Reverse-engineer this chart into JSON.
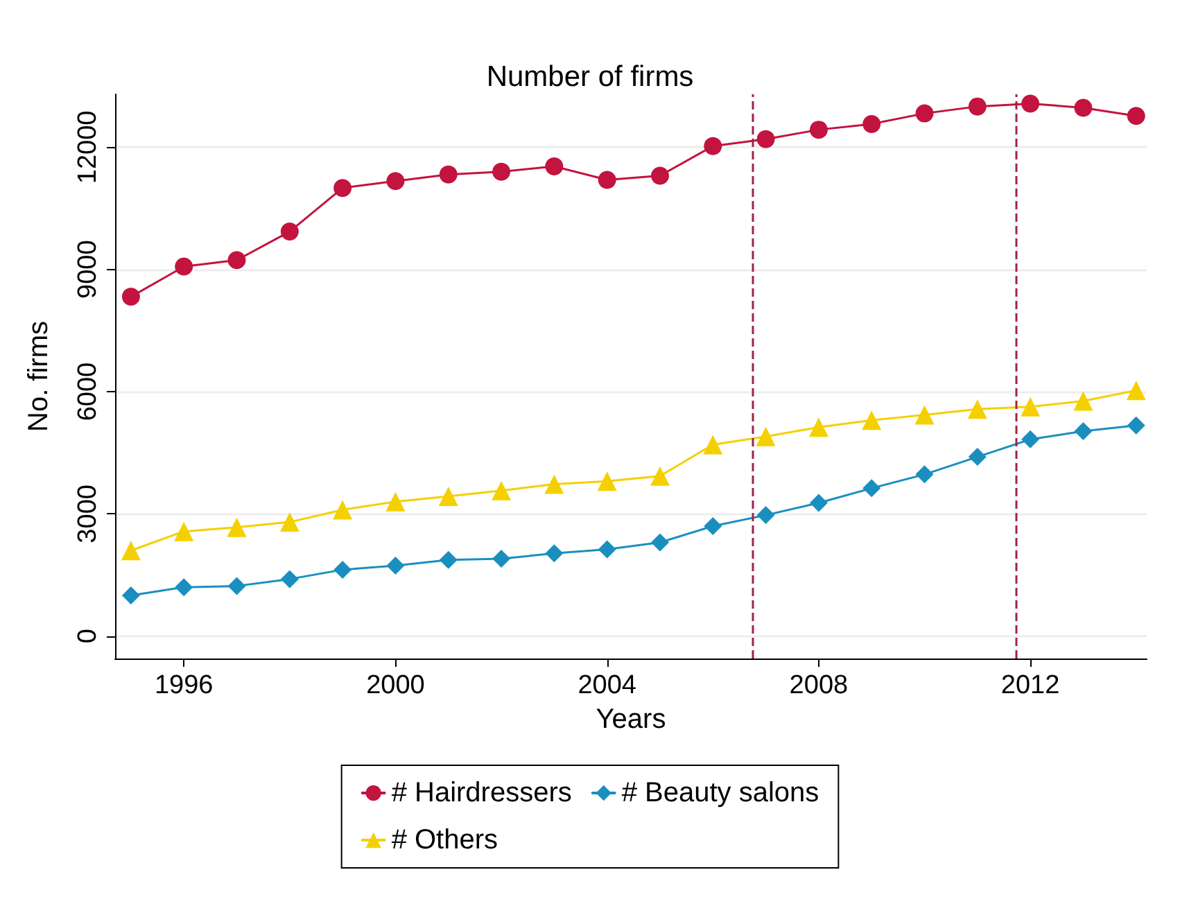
{
  "chart_data": {
    "type": "line",
    "title": "Number of firms",
    "xlabel": "Years",
    "ylabel": "No. firms",
    "x": [
      1995,
      1996,
      1997,
      1998,
      1999,
      2000,
      2001,
      2002,
      2003,
      2004,
      2005,
      2006,
      2007,
      2008,
      2009,
      2010,
      2011,
      2012,
      2013,
      2014
    ],
    "series": [
      {
        "name": "# Hairdressers",
        "color": "#c3133f",
        "marker": "circle",
        "values": [
          8330,
          9070,
          9230,
          9930,
          11000,
          11170,
          11330,
          11400,
          11530,
          11200,
          11300,
          12030,
          12200,
          12430,
          12570,
          12830,
          13000,
          13070,
          12970,
          12770
        ]
      },
      {
        "name": "# Beauty salons",
        "color": "#1a8fbf",
        "marker": "diamond",
        "values": [
          1000,
          1200,
          1230,
          1400,
          1630,
          1730,
          1870,
          1900,
          2030,
          2130,
          2300,
          2700,
          2970,
          3270,
          3630,
          3970,
          4400,
          4830,
          5030,
          5170
        ]
      },
      {
        "name": "# Others",
        "color": "#f5d000",
        "marker": "triangle",
        "values": [
          2100,
          2570,
          2670,
          2800,
          3100,
          3300,
          3430,
          3570,
          3730,
          3800,
          3930,
          4700,
          4900,
          5130,
          5300,
          5430,
          5570,
          5630,
          5770,
          6030
        ]
      }
    ],
    "xlim": [
      1994.7,
      2014.2
    ],
    "xticks": [
      1996,
      2000,
      2004,
      2008,
      2012
    ],
    "ylim": [
      -550,
      13300
    ],
    "yticks": [
      0,
      3000,
      6000,
      9000,
      12000
    ],
    "ref_lines": [
      {
        "axis": "x",
        "value": 2006.76,
        "color": "#a0234b",
        "line_style": "dashed"
      },
      {
        "axis": "x",
        "value": 2011.72,
        "color": "#a0234b",
        "line_style": "dashed"
      }
    ],
    "grid": "y",
    "legend": "bottom",
    "line_style": "solid"
  }
}
